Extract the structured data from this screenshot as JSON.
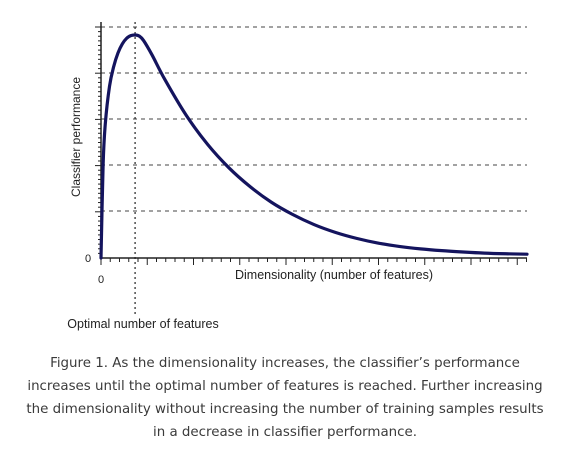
{
  "chart_data": {
    "type": "line",
    "xlabel": "Dimensionality (number of features)",
    "ylabel": "Classifier performance",
    "x_tick_labels": [
      "0"
    ],
    "y_tick_labels": [
      "0"
    ],
    "annotation": "Optimal number of features",
    "grid": "horizontal dashed",
    "optimal_x": 0.08,
    "xlim": [
      0,
      1
    ],
    "ylim": [
      0,
      1
    ],
    "series": [
      {
        "color": "#14145e",
        "x": [
          0,
          0.005,
          0.01,
          0.02,
          0.03,
          0.04,
          0.05,
          0.06,
          0.07,
          0.08,
          0.09,
          0.1,
          0.12,
          0.15,
          0.2,
          0.25,
          0.3,
          0.35,
          0.4,
          0.45,
          0.5,
          0.55,
          0.6,
          0.65,
          0.7,
          0.75,
          0.8,
          0.85,
          0.9,
          0.95,
          1.0
        ],
        "y": [
          0,
          0.42,
          0.6,
          0.77,
          0.86,
          0.92,
          0.96,
          0.985,
          0.997,
          1.0,
          0.995,
          0.975,
          0.91,
          0.8,
          0.64,
          0.51,
          0.405,
          0.32,
          0.25,
          0.195,
          0.15,
          0.115,
          0.088,
          0.067,
          0.052,
          0.041,
          0.033,
          0.027,
          0.022,
          0.019,
          0.017
        ]
      }
    ]
  },
  "caption": {
    "lines": [
      "Figure 1. As the dimensionality increases, the classifier’s performance",
      "increases until the optimal number of features is reached. Further increasing",
      "the dimensionality without increasing the number of training samples results",
      "in a decrease in classifier performance."
    ]
  }
}
